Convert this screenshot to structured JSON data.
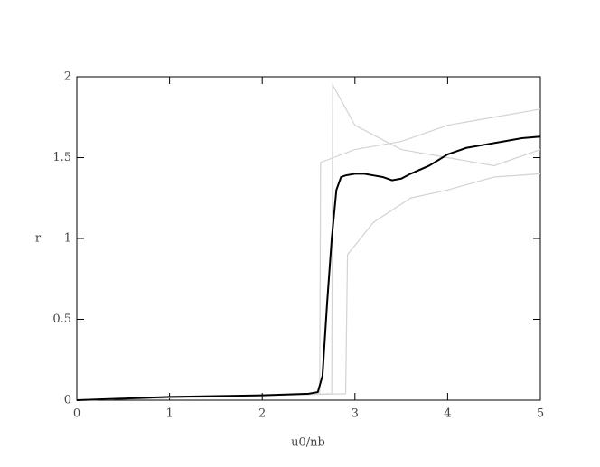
{
  "chart_data": {
    "type": "line",
    "xlabel": "u0/nb",
    "ylabel": "r",
    "xlim": [
      0,
      5
    ],
    "ylim": [
      0,
      2
    ],
    "xticks": [
      0,
      1,
      2,
      3,
      4,
      5
    ],
    "yticks": [
      0,
      0.5,
      1,
      1.5,
      2
    ],
    "series": [
      {
        "color": "#d3d3d3",
        "x": [
          0,
          2.62,
          2.63,
          3.0,
          3.5,
          4.0,
          4.5,
          5.0
        ],
        "values": [
          0,
          0.04,
          1.47,
          1.55,
          1.6,
          1.7,
          1.75,
          1.8
        ]
      },
      {
        "color": "#d3d3d3",
        "x": [
          0,
          2.9,
          2.92,
          3.2,
          3.6,
          4.0,
          4.5,
          5.0
        ],
        "values": [
          0,
          0.04,
          0.9,
          1.1,
          1.25,
          1.3,
          1.38,
          1.4
        ]
      },
      {
        "color": "#d3d3d3",
        "x": [
          0,
          2.75,
          2.76,
          3.0,
          3.5,
          4.0,
          4.5,
          5.0
        ],
        "values": [
          0,
          0.04,
          1.95,
          1.7,
          1.55,
          1.5,
          1.45,
          1.55
        ]
      },
      {
        "color": "#000000",
        "x": [
          0,
          0.5,
          1,
          1.5,
          2,
          2.5,
          2.6,
          2.65,
          2.7,
          2.75,
          2.8,
          2.85,
          2.9,
          3.0,
          3.1,
          3.2,
          3.3,
          3.4,
          3.5,
          3.6,
          3.8,
          4.0,
          4.2,
          4.4,
          4.6,
          4.8,
          5.0
        ],
        "values": [
          0,
          0.01,
          0.02,
          0.025,
          0.03,
          0.04,
          0.05,
          0.15,
          0.6,
          1.0,
          1.3,
          1.38,
          1.39,
          1.4,
          1.4,
          1.39,
          1.38,
          1.36,
          1.37,
          1.4,
          1.45,
          1.52,
          1.56,
          1.58,
          1.6,
          1.62,
          1.63
        ]
      }
    ]
  }
}
